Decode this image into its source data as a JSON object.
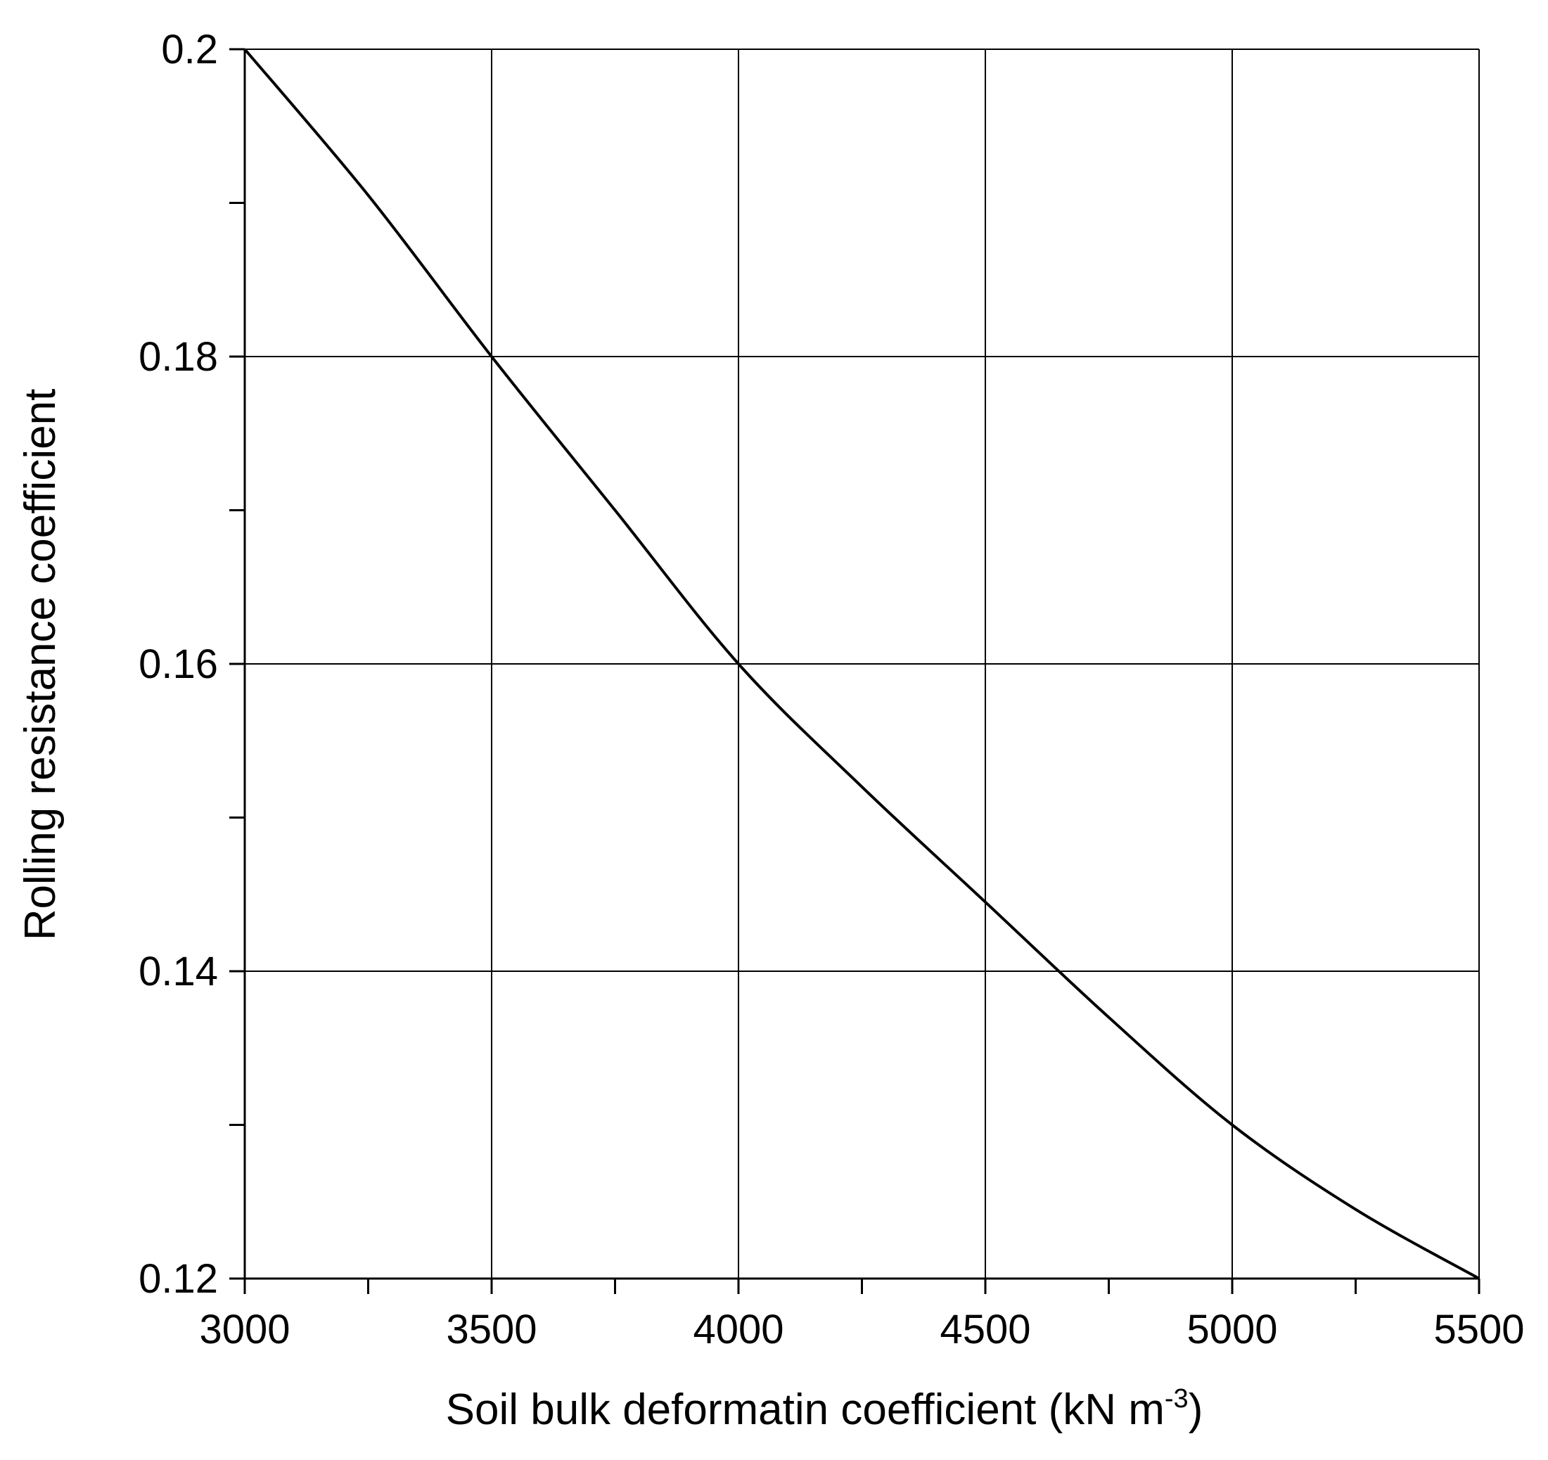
{
  "chart_data": {
    "type": "line",
    "title": "",
    "xlabel": "Soil bulk deformatin coefficient (kN m",
    "xlabel_superscript": "-3",
    "xlabel_suffix": ")",
    "ylabel": "Rolling resistance coefficient",
    "xlim": [
      3000,
      5500
    ],
    "ylim": [
      0.12,
      0.2
    ],
    "x_major_ticks": [
      3000,
      3500,
      4000,
      4500,
      5000,
      5500
    ],
    "x_tick_labels": [
      "3000",
      "3500",
      "4000",
      "4500",
      "5000",
      "5500"
    ],
    "x_minor_ticks": [
      3250,
      3750,
      4250,
      4750,
      5250
    ],
    "y_major_ticks": [
      0.12,
      0.14,
      0.16,
      0.18,
      0.2
    ],
    "y_tick_labels": [
      "0.12",
      "0.14",
      "0.16",
      "0.18",
      "0.2"
    ],
    "y_minor_ticks": [
      0.13,
      0.15,
      0.17,
      0.19
    ],
    "grid": true,
    "legend": "none",
    "series": [
      {
        "color": "#000000",
        "x": [
          3000,
          3250,
          3500,
          3750,
          4000,
          4250,
          4500,
          4750,
          5000,
          5250,
          5500
        ],
        "y": [
          0.2,
          0.1905,
          0.18,
          0.17,
          0.16,
          0.152,
          0.1445,
          0.137,
          0.13,
          0.1245,
          0.12
        ]
      }
    ]
  }
}
